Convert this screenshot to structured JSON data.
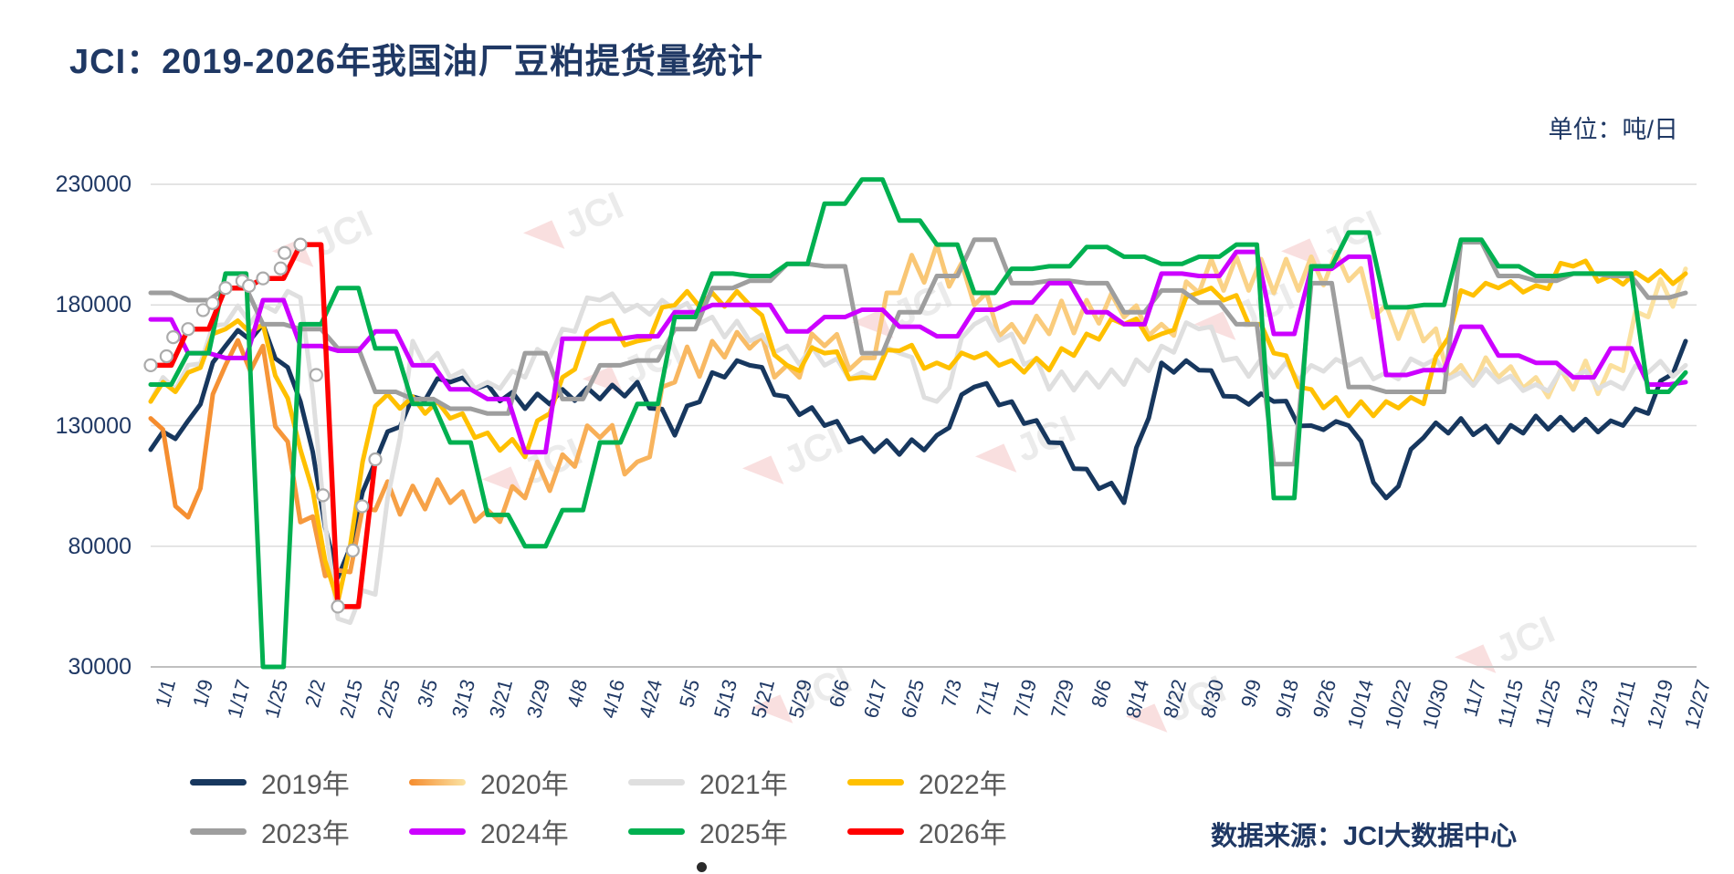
{
  "title": "JCI：2019-2026年我国油厂豆粕提货量统计",
  "unit_label": "单位：吨/日",
  "source_label": "数据来源：JCI大数据中心",
  "watermark_text": "JCI",
  "accent_color": "#1F3864",
  "legend_text_color": "#595959",
  "chart_data": {
    "type": "line",
    "title": "JCI：2019-2026年我国油厂豆粕提货量统计",
    "unit": "单位：吨/日",
    "xlabel": "",
    "ylabel": "吨/日",
    "ylim": [
      30000,
      230000
    ],
    "y_ticks": [
      230000,
      180000,
      130000,
      80000,
      30000
    ],
    "grid": true,
    "legend_position": "bottom",
    "categories": [
      "1/1",
      "1/9",
      "1/17",
      "1/25",
      "2/2",
      "2/15",
      "2/25",
      "3/5",
      "3/13",
      "3/21",
      "3/29",
      "4/8",
      "4/16",
      "4/24",
      "5/5",
      "5/13",
      "5/21",
      "5/29",
      "6/6",
      "6/17",
      "6/25",
      "7/3",
      "7/11",
      "7/19",
      "7/29",
      "8/6",
      "8/14",
      "8/22",
      "8/30",
      "9/9",
      "9/18",
      "9/26",
      "10/14",
      "10/22",
      "10/30",
      "11/7",
      "11/15",
      "11/25",
      "12/3",
      "12/11",
      "12/19",
      "12/27"
    ],
    "series": [
      {
        "name": "2019年",
        "color": "#17375E",
        "values": [
          120000,
          132000,
          163000,
          172000,
          140000,
          67000,
          115000,
          142000,
          148000,
          147000,
          137000,
          145000,
          141000,
          148000,
          126000,
          152000,
          155000,
          142000,
          130000,
          125000,
          118000,
          126000,
          146000,
          140000,
          123000,
          112000,
          98000,
          156000,
          153000,
          142000,
          140000,
          130000,
          130000,
          100000,
          125000,
          133000,
          123000,
          134000,
          128000,
          132000,
          135000,
          165000
        ]
      },
      {
        "name": "2020年",
        "color": "#F58C2E",
        "color_end": "#FBE3A3",
        "values": [
          133000,
          92000,
          155000,
          163000,
          90000,
          70000,
          95000,
          105000,
          98000,
          95000,
          100000,
          118000,
          125000,
          115000,
          148000,
          165000,
          162000,
          155000,
          163000,
          158000,
          185000,
          205000,
          180000,
          172000,
          168000,
          182000,
          175000,
          172000,
          185000,
          200000,
          185000,
          200000,
          190000,
          180000,
          165000,
          155000,
          150000,
          150000,
          145000,
          155000,
          175000,
          195000
        ]
      },
      {
        "name": "2021年",
        "color": "#DFDFDF",
        "values": [
          140000,
          155000,
          172000,
          180000,
          183000,
          50000,
          60000,
          165000,
          150000,
          148000,
          150000,
          170000,
          182000,
          180000,
          178000,
          175000,
          165000,
          163000,
          155000,
          152000,
          160000,
          140000,
          172000,
          168000,
          145000,
          152000,
          147000,
          163000,
          170000,
          158000,
          150000,
          155000,
          155000,
          152000,
          155000,
          152000,
          148000,
          147000,
          150000,
          148000,
          152000,
          155000
        ]
      },
      {
        "name": "2022年",
        "color": "#FFC000",
        "values": [
          140000,
          152000,
          170000,
          172000,
          120000,
          57000,
          138000,
          142000,
          133000,
          127000,
          117000,
          150000,
          172000,
          165000,
          180000,
          185000,
          180000,
          155000,
          160000,
          150000,
          161000,
          156000,
          158000,
          157000,
          153000,
          168000,
          172000,
          168000,
          185000,
          184000,
          160000,
          145000,
          134000,
          140000,
          139000,
          186000,
          187000,
          188000,
          196000,
          192000,
          190000,
          193000
        ]
      },
      {
        "name": "2023年",
        "color": "#9E9E9E",
        "values": [
          185000,
          182000,
          187000,
          172000,
          170000,
          162000,
          144000,
          141000,
          137000,
          135000,
          160000,
          141000,
          155000,
          157000,
          170000,
          187000,
          190000,
          197000,
          196000,
          160000,
          177000,
          192000,
          207000,
          189000,
          190000,
          189000,
          177000,
          186000,
          181000,
          172000,
          114000,
          189000,
          146000,
          144000,
          144000,
          206000,
          192000,
          190000,
          193000,
          192000,
          183000,
          185000
        ]
      },
      {
        "name": "2024年",
        "color": "#CC00FF",
        "values": [
          174000,
          160000,
          158000,
          182000,
          163000,
          161000,
          169000,
          155000,
          145000,
          141000,
          119000,
          166000,
          166000,
          167000,
          177000,
          180000,
          180000,
          169000,
          175000,
          178000,
          171000,
          167000,
          178000,
          181000,
          189000,
          177000,
          172000,
          193000,
          192000,
          202000,
          168000,
          195000,
          200000,
          151000,
          153000,
          171000,
          159000,
          156000,
          150000,
          162000,
          147000,
          148000
        ]
      },
      {
        "name": "2025年",
        "color": "#00B050",
        "values": [
          147000,
          160000,
          193000,
          30000,
          172000,
          187000,
          162000,
          139000,
          123000,
          93000,
          80000,
          95000,
          123000,
          139000,
          175000,
          193000,
          192000,
          197000,
          222000,
          232000,
          215000,
          205000,
          185000,
          195000,
          196000,
          204000,
          200000,
          197000,
          200000,
          205000,
          100000,
          196000,
          210000,
          179000,
          180000,
          207000,
          196000,
          192000,
          193000,
          193000,
          144000,
          152000
        ]
      },
      {
        "name": "2026年",
        "color": "#FF0000",
        "markers": true,
        "values": [
          155000,
          170000,
          187000,
          191000,
          205000,
          55000,
          116000,
          null,
          null,
          null,
          null,
          null,
          null,
          null,
          null,
          null,
          null,
          null,
          null,
          null,
          null,
          null,
          null,
          null,
          null,
          null,
          null,
          null,
          null,
          null,
          null,
          null,
          null,
          null,
          null,
          null,
          null,
          null,
          null,
          null,
          null,
          null
        ]
      }
    ]
  }
}
